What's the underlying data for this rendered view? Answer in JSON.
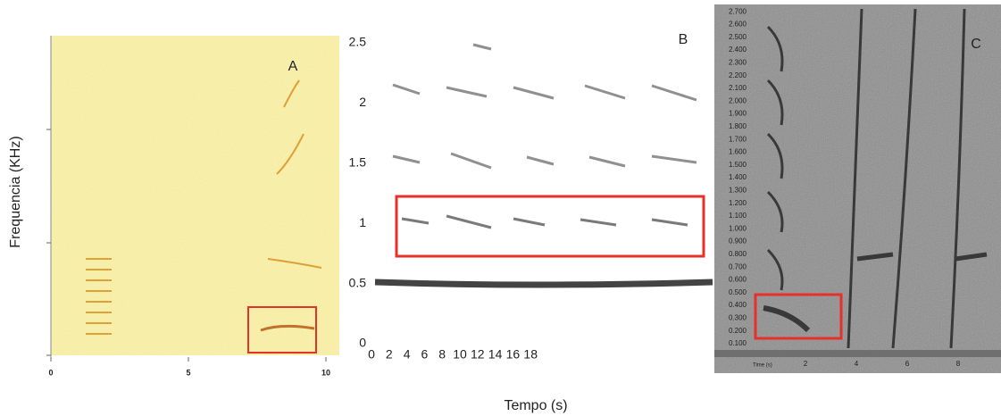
{
  "figure": {
    "y_label": "Frequencia (KHz)",
    "x_label": "Tempo (s)",
    "panels": [
      {
        "label": "A",
        "xticks": [
          "0",
          "5",
          "10"
        ]
      },
      {
        "label": "B",
        "yticks": [
          "0",
          "0.5",
          "1",
          "1.5",
          "2",
          "2.5"
        ],
        "xticks": [
          "0",
          "2",
          "4",
          "6",
          "8",
          "10",
          "12",
          "14",
          "16",
          "18"
        ]
      },
      {
        "label": "C",
        "x_unit": "Time (s)",
        "xticks": [
          "2",
          "4",
          "6",
          "8"
        ],
        "yticks": [
          "0.100",
          "0.200",
          "0.300",
          "0.400",
          "0.500",
          "0.600",
          "0.700",
          "0.800",
          "0.900",
          "1.000",
          "1.100",
          "1.200",
          "1.300",
          "1.400",
          "1.500",
          "1.600",
          "1.700",
          "1.800",
          "1.900",
          "2.000",
          "2.100",
          "2.200",
          "2.300",
          "2.400",
          "2.500",
          "2.600",
          "2.700"
        ]
      }
    ]
  }
}
